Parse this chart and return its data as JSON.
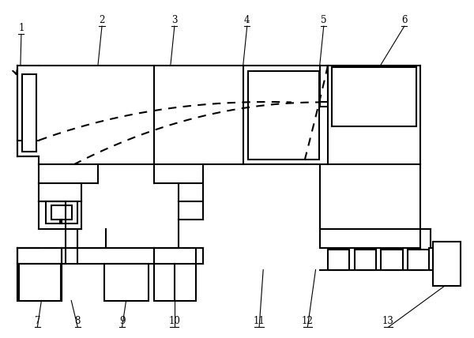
{
  "bg": "#ffffff",
  "lc": "#000000",
  "lw": 1.5,
  "lw_t": 0.8,
  "fs": 8.5,
  "dash": [
    5,
    4
  ]
}
